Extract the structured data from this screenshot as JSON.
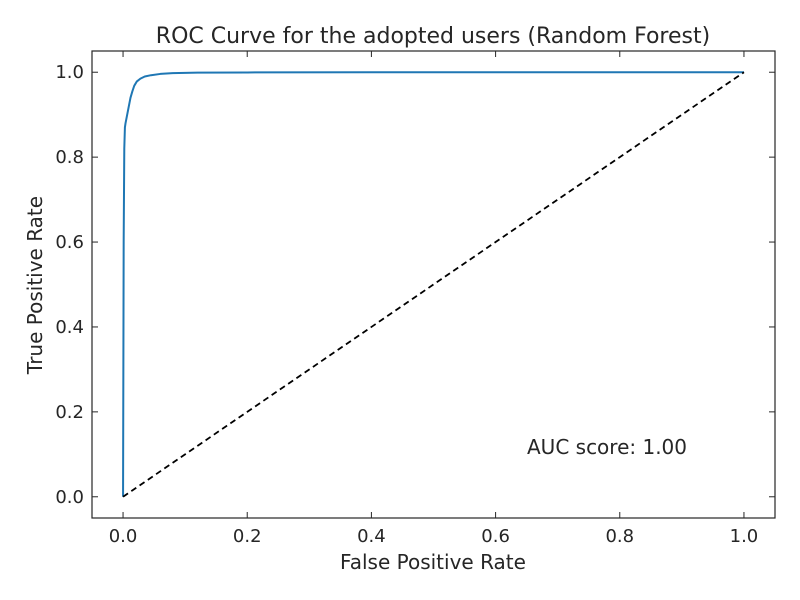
{
  "chart_data": {
    "type": "line",
    "title": "ROC Curve for the adopted users (Random Forest)",
    "xlabel": "False Positive Rate",
    "ylabel": "True Positive Rate",
    "xlim": [
      -0.05,
      1.05
    ],
    "ylim": [
      -0.05,
      1.05
    ],
    "x_ticks": [
      "0.0",
      "0.2",
      "0.4",
      "0.6",
      "0.8",
      "1.0"
    ],
    "y_ticks": [
      "0.0",
      "0.2",
      "0.4",
      "0.6",
      "0.8",
      "1.0"
    ],
    "grid": false,
    "annotation": "AUC score: 1.00",
    "series": [
      {
        "color": "#1f77b4",
        "linestyle": "solid",
        "x": [
          0.0,
          0.001,
          0.002,
          0.003,
          0.004,
          0.006,
          0.008,
          0.01,
          0.012,
          0.015,
          0.018,
          0.022,
          0.028,
          0.035,
          0.045,
          0.06,
          0.08,
          0.12,
          0.2,
          0.4,
          0.7,
          1.0
        ],
        "y": [
          0.0,
          0.6,
          0.82,
          0.87,
          0.88,
          0.895,
          0.91,
          0.925,
          0.94,
          0.955,
          0.968,
          0.978,
          0.985,
          0.99,
          0.993,
          0.996,
          0.998,
          0.999,
          0.9995,
          0.9998,
          0.9999,
          1.0
        ]
      },
      {
        "color": "#000000",
        "linestyle": "dashed",
        "x": [
          0.0,
          1.0
        ],
        "y": [
          0.0,
          1.0
        ]
      }
    ]
  }
}
